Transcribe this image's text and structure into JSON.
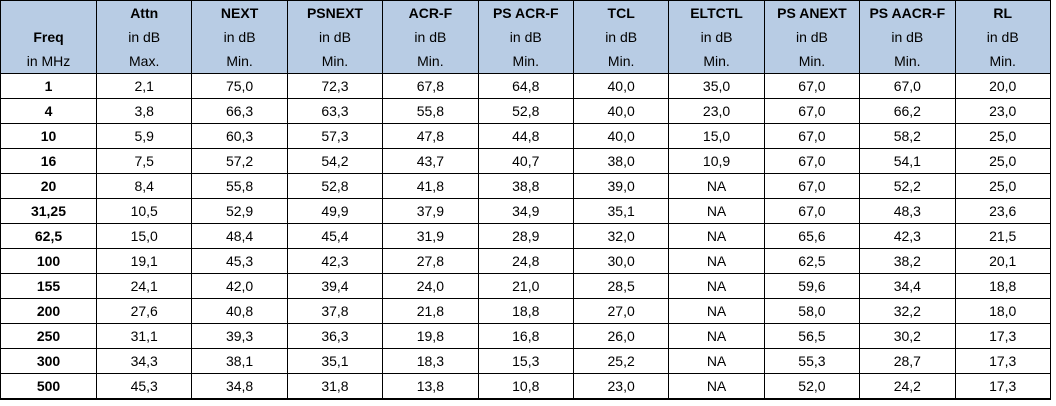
{
  "table": {
    "freq_header": {
      "name": "Freq",
      "unit": "in MHz"
    },
    "columns": [
      {
        "name": "Attn",
        "unit": "in dB",
        "limit": "Max."
      },
      {
        "name": "NEXT",
        "unit": "in dB",
        "limit": "Min."
      },
      {
        "name": "PSNEXT",
        "unit": "in dB",
        "limit": "Min."
      },
      {
        "name": "ACR-F",
        "unit": "in dB",
        "limit": "Min."
      },
      {
        "name": "PS ACR-F",
        "unit": "in dB",
        "limit": "Min."
      },
      {
        "name": "TCL",
        "unit": "in dB",
        "limit": "Min."
      },
      {
        "name": "ELTCTL",
        "unit": "in dB",
        "limit": "Min."
      },
      {
        "name": "PS ANEXT",
        "unit": "in dB",
        "limit": "Min."
      },
      {
        "name": "PS AACR-F",
        "unit": "in dB",
        "limit": "Min."
      },
      {
        "name": "RL",
        "unit": "in dB",
        "limit": "Min."
      }
    ],
    "rows": [
      {
        "freq": "1",
        "values": [
          "2,1",
          "75,0",
          "72,3",
          "67,8",
          "64,8",
          "40,0",
          "35,0",
          "67,0",
          "67,0",
          "20,0"
        ]
      },
      {
        "freq": "4",
        "values": [
          "3,8",
          "66,3",
          "63,3",
          "55,8",
          "52,8",
          "40,0",
          "23,0",
          "67,0",
          "66,2",
          "23,0"
        ]
      },
      {
        "freq": "10",
        "values": [
          "5,9",
          "60,3",
          "57,3",
          "47,8",
          "44,8",
          "40,0",
          "15,0",
          "67,0",
          "58,2",
          "25,0"
        ]
      },
      {
        "freq": "16",
        "values": [
          "7,5",
          "57,2",
          "54,2",
          "43,7",
          "40,7",
          "38,0",
          "10,9",
          "67,0",
          "54,1",
          "25,0"
        ]
      },
      {
        "freq": "20",
        "values": [
          "8,4",
          "55,8",
          "52,8",
          "41,8",
          "38,8",
          "39,0",
          "NA",
          "67,0",
          "52,2",
          "25,0"
        ]
      },
      {
        "freq": "31,25",
        "values": [
          "10,5",
          "52,9",
          "49,9",
          "37,9",
          "34,9",
          "35,1",
          "NA",
          "67,0",
          "48,3",
          "23,6"
        ]
      },
      {
        "freq": "62,5",
        "values": [
          "15,0",
          "48,4",
          "45,4",
          "31,9",
          "28,9",
          "32,0",
          "NA",
          "65,6",
          "42,3",
          "21,5"
        ]
      },
      {
        "freq": "100",
        "values": [
          "19,1",
          "45,3",
          "42,3",
          "27,8",
          "24,8",
          "30,0",
          "NA",
          "62,5",
          "38,2",
          "20,1"
        ]
      },
      {
        "freq": "155",
        "values": [
          "24,1",
          "42,0",
          "39,4",
          "24,0",
          "21,0",
          "28,5",
          "NA",
          "59,6",
          "34,4",
          "18,8"
        ]
      },
      {
        "freq": "200",
        "values": [
          "27,6",
          "40,8",
          "37,8",
          "21,8",
          "18,8",
          "27,0",
          "NA",
          "58,0",
          "32,2",
          "18,0"
        ]
      },
      {
        "freq": "250",
        "values": [
          "31,1",
          "39,3",
          "36,3",
          "19,8",
          "16,8",
          "26,0",
          "NA",
          "56,5",
          "30,2",
          "17,3"
        ]
      },
      {
        "freq": "300",
        "values": [
          "34,3",
          "38,1",
          "35,1",
          "18,3",
          "15,3",
          "25,2",
          "NA",
          "55,3",
          "28,7",
          "17,3"
        ]
      },
      {
        "freq": "500",
        "values": [
          "45,3",
          "34,8",
          "31,8",
          "13,8",
          "10,8",
          "23,0",
          "NA",
          "52,0",
          "24,2",
          "17,3"
        ]
      }
    ]
  },
  "colors": {
    "header_background": "#b8cce4",
    "cell_background": "#ffffff",
    "border": "#000000",
    "text": "#000000"
  }
}
